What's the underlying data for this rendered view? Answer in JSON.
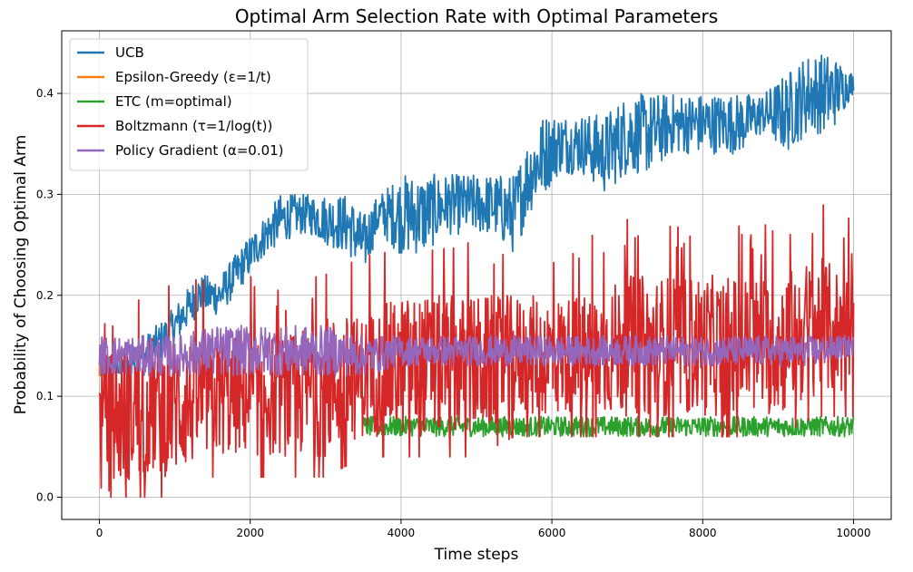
{
  "chart_data": {
    "type": "line",
    "title": "Optimal Arm Selection Rate with Optimal Parameters",
    "xlabel": "Time steps",
    "ylabel": "Probability of Choosing Optimal Arm",
    "xlim": [
      -500,
      10500
    ],
    "ylim": [
      -0.022,
      0.462
    ],
    "xticks": [
      0,
      2000,
      4000,
      6000,
      8000,
      10000
    ],
    "xtick_labels": [
      "0",
      "2000",
      "4000",
      "6000",
      "8000",
      "10000"
    ],
    "yticks": [
      0.0,
      0.1,
      0.2,
      0.3,
      0.4
    ],
    "ytick_labels": [
      "0.0",
      "0.1",
      "0.2",
      "0.3",
      "0.4"
    ],
    "grid": true,
    "legend_position": "top-left",
    "series": [
      {
        "name": "UCB",
        "color": "#1f77b4",
        "noisy": true,
        "x": [
          0,
          300,
          600,
          900,
          1100,
          1300,
          1600,
          1800,
          2000,
          2200,
          2400,
          2600,
          2800,
          3000,
          3300,
          3500,
          3700,
          4000,
          4300,
          4600,
          4900,
          5200,
          5500,
          5700,
          5900,
          6100,
          6400,
          6700,
          7000,
          7300,
          7600,
          7900,
          8200,
          8500,
          8800,
          9100,
          9400,
          9700,
          10000
        ],
        "y_low": [
          0.12,
          0.12,
          0.12,
          0.14,
          0.16,
          0.18,
          0.18,
          0.2,
          0.22,
          0.24,
          0.25,
          0.26,
          0.26,
          0.25,
          0.24,
          0.22,
          0.26,
          0.24,
          0.24,
          0.26,
          0.26,
          0.26,
          0.24,
          0.28,
          0.3,
          0.32,
          0.32,
          0.3,
          0.32,
          0.32,
          0.34,
          0.34,
          0.34,
          0.34,
          0.36,
          0.34,
          0.36,
          0.36,
          0.4
        ],
        "y_high": [
          0.14,
          0.14,
          0.16,
          0.18,
          0.2,
          0.22,
          0.22,
          0.24,
          0.26,
          0.28,
          0.3,
          0.3,
          0.3,
          0.3,
          0.3,
          0.28,
          0.3,
          0.32,
          0.32,
          0.32,
          0.32,
          0.32,
          0.32,
          0.36,
          0.38,
          0.38,
          0.38,
          0.38,
          0.4,
          0.4,
          0.4,
          0.4,
          0.4,
          0.4,
          0.4,
          0.42,
          0.44,
          0.44,
          0.42
        ]
      },
      {
        "name": "Epsilon-Greedy (ε=1/t)",
        "color": "#ff7f0e",
        "noisy": true,
        "x": [
          0,
          20,
          40,
          60
        ],
        "y_low": [
          0.12,
          0.12,
          0.12,
          0.12
        ],
        "y_high": [
          0.14,
          0.14,
          0.14,
          0.14
        ]
      },
      {
        "name": "ETC (m=optimal)",
        "color": "#2ca02c",
        "noisy": true,
        "x": [
          3500,
          4000,
          5000,
          6000,
          7000,
          8000,
          9000,
          10000
        ],
        "y_low": [
          0.06,
          0.06,
          0.06,
          0.06,
          0.06,
          0.06,
          0.06,
          0.06
        ],
        "y_high": [
          0.08,
          0.08,
          0.08,
          0.08,
          0.08,
          0.08,
          0.08,
          0.08
        ]
      },
      {
        "name": "Boltzmann (τ=1/log(t))",
        "color": "#d62728",
        "noisy": true,
        "x": [
          0,
          500,
          1000,
          1500,
          2000,
          2500,
          3000,
          3500,
          4000,
          4500,
          5000,
          5500,
          6000,
          6500,
          7000,
          7500,
          8000,
          8500,
          9000,
          9500,
          10000
        ],
        "y_low": [
          0.0,
          0.02,
          0.02,
          0.04,
          0.04,
          0.04,
          0.04,
          0.06,
          0.06,
          0.06,
          0.06,
          0.08,
          0.08,
          0.08,
          0.08,
          0.08,
          0.08,
          0.08,
          0.08,
          0.1,
          0.1
        ],
        "y_high": [
          0.14,
          0.16,
          0.16,
          0.16,
          0.16,
          0.16,
          0.18,
          0.18,
          0.2,
          0.2,
          0.2,
          0.2,
          0.2,
          0.2,
          0.22,
          0.22,
          0.22,
          0.22,
          0.22,
          0.24,
          0.22
        ]
      },
      {
        "name": "Policy Gradient (α=0.01)",
        "color": "#9467bd",
        "noisy": true,
        "x": [
          0,
          500,
          1000,
          1500,
          2000,
          2500,
          3000,
          3500,
          4000,
          4500,
          5000,
          5500,
          6000,
          6500,
          7000,
          7500,
          8000,
          8500,
          9000,
          9500,
          10000
        ],
        "y_low": [
          0.12,
          0.12,
          0.12,
          0.12,
          0.12,
          0.12,
          0.12,
          0.12,
          0.13,
          0.13,
          0.13,
          0.13,
          0.13,
          0.13,
          0.13,
          0.13,
          0.13,
          0.13,
          0.13,
          0.13,
          0.14
        ],
        "y_high": [
          0.16,
          0.16,
          0.16,
          0.17,
          0.17,
          0.17,
          0.17,
          0.16,
          0.16,
          0.16,
          0.16,
          0.16,
          0.16,
          0.16,
          0.16,
          0.16,
          0.16,
          0.16,
          0.16,
          0.16,
          0.16
        ]
      }
    ]
  }
}
